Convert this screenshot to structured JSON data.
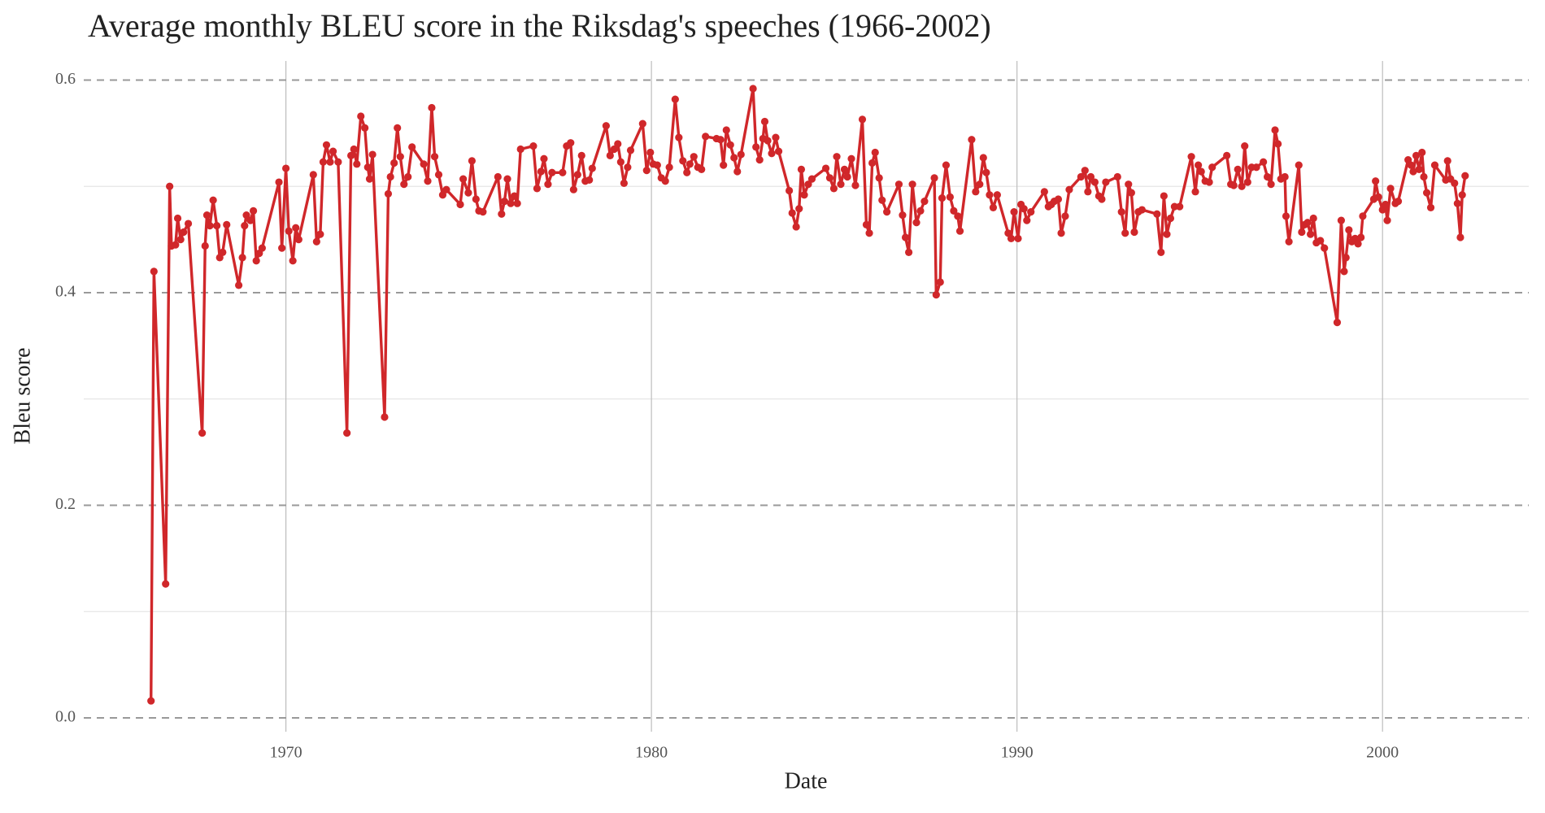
{
  "chart_data": {
    "type": "line",
    "title": "Average monthly BLEU score in the Riksdag's speeches (1966-2002)",
    "x_label": "Date",
    "y_label": "Bleu score",
    "color": "#d0272a",
    "grid": true,
    "xlim": [
      1964.47,
      2004.0
    ],
    "ylim": [
      -0.013,
      0.618
    ],
    "xticks": [
      1970,
      1980,
      1990,
      2000
    ],
    "yticks": [
      {
        "value": 0,
        "label": "0.0"
      },
      0.2,
      0.4,
      0.6
    ],
    "y_minor_ticks": [
      0.1,
      0.3,
      0.5
    ],
    "x": [
      1966.31,
      1966.39,
      1966.71,
      1966.82,
      1966.87,
      1966.98,
      1967.04,
      1967.12,
      1967.2,
      1967.33,
      1967.71,
      1967.79,
      1967.84,
      1967.92,
      1968.01,
      1968.11,
      1968.19,
      1968.27,
      1968.38,
      1968.71,
      1968.81,
      1968.87,
      1968.92,
      1969.03,
      1969.11,
      1969.19,
      1969.27,
      1969.35,
      1969.81,
      1969.89,
      1970.0,
      1970.08,
      1970.19,
      1970.27,
      1970.35,
      1970.75,
      1970.84,
      1970.94,
      1971.02,
      1971.11,
      1971.21,
      1971.29,
      1971.43,
      1971.67,
      1971.78,
      1971.86,
      1971.94,
      1972.05,
      1972.16,
      1972.24,
      1972.29,
      1972.37,
      1972.7,
      1972.8,
      1972.86,
      1972.96,
      1973.05,
      1973.13,
      1973.23,
      1973.34,
      1973.45,
      1973.77,
      1973.88,
      1973.99,
      1974.07,
      1974.18,
      1974.29,
      1974.39,
      1974.77,
      1974.85,
      1974.99,
      1975.09,
      1975.2,
      1975.28,
      1975.39,
      1975.8,
      1975.9,
      1975.98,
      1976.06,
      1976.15,
      1976.25,
      1976.33,
      1976.42,
      1976.77,
      1976.87,
      1976.98,
      1977.06,
      1977.17,
      1977.28,
      1977.57,
      1977.68,
      1977.79,
      1977.87,
      1977.98,
      1978.09,
      1978.19,
      1978.3,
      1978.38,
      1978.76,
      1978.87,
      1978.98,
      1979.08,
      1979.16,
      1979.25,
      1979.35,
      1979.43,
      1979.76,
      1979.87,
      1979.97,
      1980.05,
      1980.16,
      1980.27,
      1980.38,
      1980.49,
      1980.65,
      1980.75,
      1980.86,
      1980.97,
      1981.05,
      1981.16,
      1981.27,
      1981.37,
      1981.48,
      1981.78,
      1981.89,
      1981.97,
      1982.05,
      1982.16,
      1982.26,
      1982.35,
      1982.45,
      1982.78,
      1982.86,
      1982.96,
      1983.05,
      1983.1,
      1983.18,
      1983.29,
      1983.4,
      1983.48,
      1983.77,
      1983.85,
      1983.96,
      1984.04,
      1984.1,
      1984.18,
      1984.29,
      1984.39,
      1984.77,
      1984.88,
      1984.99,
      1985.07,
      1985.18,
      1985.28,
      1985.36,
      1985.47,
      1985.58,
      1985.77,
      1985.88,
      1985.96,
      1986.04,
      1986.12,
      1986.23,
      1986.31,
      1986.44,
      1986.77,
      1986.87,
      1986.95,
      1987.04,
      1987.14,
      1987.25,
      1987.36,
      1987.47,
      1987.74,
      1987.79,
      1987.9,
      1987.95,
      1988.06,
      1988.17,
      1988.27,
      1988.38,
      1988.44,
      1988.76,
      1988.87,
      1988.98,
      1989.08,
      1989.16,
      1989.25,
      1989.35,
      1989.46,
      1989.76,
      1989.84,
      1989.92,
      1990.03,
      1990.11,
      1990.19,
      1990.27,
      1990.38,
      1990.75,
      1990.86,
      1990.94,
      1991.02,
      1991.13,
      1991.21,
      1991.32,
      1991.43,
      1991.75,
      1991.86,
      1991.94,
      1992.02,
      1992.13,
      1992.24,
      1992.32,
      1992.43,
      1992.75,
      1992.86,
      1992.96,
      1993.05,
      1993.13,
      1993.21,
      1993.32,
      1993.42,
      1993.83,
      1993.94,
      1994.02,
      1994.1,
      1994.2,
      1994.31,
      1994.45,
      1994.77,
      1994.88,
      1994.96,
      1995.04,
      1995.15,
      1995.26,
      1995.34,
      1995.74,
      1995.85,
      1995.93,
      1996.04,
      1996.15,
      1996.23,
      1996.31,
      1996.42,
      1996.55,
      1996.74,
      1996.85,
      1996.95,
      1997.06,
      1997.14,
      1997.22,
      1997.33,
      1997.36,
      1997.44,
      1997.71,
      1997.79,
      1997.87,
      1997.95,
      1998.03,
      1998.11,
      1998.19,
      1998.3,
      1998.41,
      1998.76,
      1998.87,
      1998.95,
      1999.0,
      1999.08,
      1999.16,
      1999.25,
      1999.33,
      1999.41,
      1999.46,
      1999.76,
      1999.81,
      1999.89,
      2000.0,
      2000.08,
      2000.13,
      2000.22,
      2000.35,
      2000.43,
      2000.7,
      2000.78,
      2000.84,
      2000.92,
      2001.0,
      2001.08,
      2001.13,
      2001.21,
      2001.32,
      2001.43,
      2001.73,
      2001.78,
      2001.86,
      2001.97,
      2002.05,
      2002.13,
      2002.18,
      2002.26
    ],
    "values": [
      0.016,
      0.42,
      0.126,
      0.5,
      0.444,
      0.445,
      0.47,
      0.45,
      0.457,
      0.465,
      0.268,
      0.444,
      0.473,
      0.463,
      0.487,
      0.463,
      0.433,
      0.438,
      0.464,
      0.407,
      0.433,
      0.463,
      0.473,
      0.468,
      0.477,
      0.43,
      0.437,
      0.442,
      0.504,
      0.442,
      0.517,
      0.458,
      0.43,
      0.461,
      0.45,
      0.511,
      0.448,
      0.455,
      0.523,
      0.539,
      0.523,
      0.533,
      0.523,
      0.268,
      0.529,
      0.535,
      0.521,
      0.566,
      0.555,
      0.518,
      0.507,
      0.53,
      0.283,
      0.493,
      0.509,
      0.522,
      0.555,
      0.528,
      0.502,
      0.509,
      0.537,
      0.521,
      0.505,
      0.574,
      0.528,
      0.511,
      0.492,
      0.497,
      0.483,
      0.507,
      0.494,
      0.524,
      0.488,
      0.477,
      0.476,
      0.509,
      0.474,
      0.486,
      0.507,
      0.484,
      0.491,
      0.484,
      0.535,
      0.538,
      0.498,
      0.514,
      0.526,
      0.502,
      0.513,
      0.513,
      0.538,
      0.541,
      0.497,
      0.511,
      0.529,
      0.505,
      0.506,
      0.517,
      0.557,
      0.529,
      0.535,
      0.54,
      0.523,
      0.503,
      0.518,
      0.534,
      0.559,
      0.515,
      0.532,
      0.521,
      0.52,
      0.508,
      0.505,
      0.518,
      0.582,
      0.546,
      0.524,
      0.513,
      0.521,
      0.528,
      0.518,
      0.516,
      0.547,
      0.545,
      0.544,
      0.52,
      0.553,
      0.539,
      0.527,
      0.514,
      0.53,
      0.592,
      0.537,
      0.525,
      0.545,
      0.561,
      0.543,
      0.531,
      0.546,
      0.533,
      0.496,
      0.475,
      0.462,
      0.479,
      0.516,
      0.492,
      0.502,
      0.507,
      0.517,
      0.508,
      0.498,
      0.528,
      0.502,
      0.516,
      0.509,
      0.526,
      0.501,
      0.563,
      0.464,
      0.456,
      0.522,
      0.532,
      0.508,
      0.487,
      0.476,
      0.502,
      0.473,
      0.452,
      0.438,
      0.502,
      0.466,
      0.477,
      0.486,
      0.508,
      0.398,
      0.41,
      0.489,
      0.52,
      0.49,
      0.477,
      0.472,
      0.458,
      0.544,
      0.495,
      0.502,
      0.527,
      0.513,
      0.492,
      0.48,
      0.492,
      0.456,
      0.451,
      0.476,
      0.451,
      0.483,
      0.479,
      0.468,
      0.476,
      0.495,
      0.481,
      0.483,
      0.486,
      0.488,
      0.456,
      0.472,
      0.497,
      0.509,
      0.515,
      0.495,
      0.509,
      0.504,
      0.491,
      0.488,
      0.504,
      0.509,
      0.476,
      0.456,
      0.502,
      0.494,
      0.457,
      0.476,
      0.478,
      0.474,
      0.438,
      0.491,
      0.455,
      0.47,
      0.481,
      0.481,
      0.528,
      0.495,
      0.52,
      0.514,
      0.505,
      0.504,
      0.518,
      0.529,
      0.502,
      0.501,
      0.516,
      0.5,
      0.538,
      0.504,
      0.518,
      0.518,
      0.523,
      0.509,
      0.502,
      0.553,
      0.54,
      0.507,
      0.509,
      0.472,
      0.448,
      0.52,
      0.457,
      0.464,
      0.466,
      0.455,
      0.47,
      0.447,
      0.449,
      0.442,
      0.372,
      0.468,
      0.42,
      0.433,
      0.459,
      0.448,
      0.451,
      0.446,
      0.452,
      0.472,
      0.488,
      0.505,
      0.49,
      0.478,
      0.483,
      0.468,
      0.498,
      0.484,
      0.486,
      0.525,
      0.52,
      0.514,
      0.529,
      0.516,
      0.532,
      0.509,
      0.494,
      0.48,
      0.52,
      0.506,
      0.524,
      0.507,
      0.503,
      0.484,
      0.452,
      0.492,
      0.51
    ]
  }
}
